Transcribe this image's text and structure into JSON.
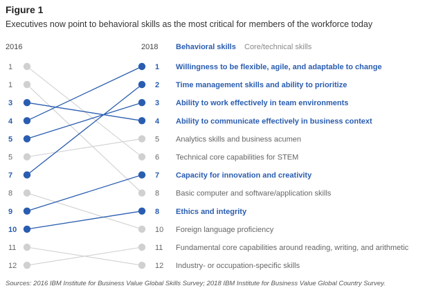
{
  "figure_label": "Figure 1",
  "subtitle": "Executives now point to behavioral skills as the most critical for members of the workforce today",
  "footer": "Sources: 2016 IBM Institute for Business Value Global Skills Survey; 2018 IBM Institute for Business Value Global Country Survey.",
  "colors": {
    "behavioral": "#2a5db0",
    "core": "#d0d0d0",
    "core_text": "#666666"
  },
  "chart_data": {
    "type": "slope",
    "left_year": "2016",
    "right_year": "2018",
    "legend": [
      "Behavioral skills",
      "Core/technical skills"
    ],
    "rows_2016": [
      {
        "rank": "1",
        "category": "core"
      },
      {
        "rank": "1",
        "category": "core"
      },
      {
        "rank": "3",
        "category": "behavioral"
      },
      {
        "rank": "4",
        "category": "behavioral"
      },
      {
        "rank": "5",
        "category": "behavioral"
      },
      {
        "rank": "5",
        "category": "core"
      },
      {
        "rank": "7",
        "category": "behavioral"
      },
      {
        "rank": "8",
        "category": "core"
      },
      {
        "rank": "9",
        "category": "behavioral"
      },
      {
        "rank": "10",
        "category": "behavioral"
      },
      {
        "rank": "11",
        "category": "core"
      },
      {
        "rank": "12",
        "category": "core"
      }
    ],
    "skills_2018": [
      {
        "rank": "1",
        "label": "Willingness to be flexible, agile, and adaptable to change",
        "category": "behavioral"
      },
      {
        "rank": "2",
        "label": "Time management skills and ability to prioritize",
        "category": "behavioral"
      },
      {
        "rank": "3",
        "label": "Ability to work effectively in team environments",
        "category": "behavioral"
      },
      {
        "rank": "4",
        "label": "Ability to communicate effectively in business context",
        "category": "behavioral"
      },
      {
        "rank": "5",
        "label": "Analytics skills and business acumen",
        "category": "core"
      },
      {
        "rank": "6",
        "label": "Technical core capabilities for STEM",
        "category": "core"
      },
      {
        "rank": "7",
        "label": "Capacity for innovation and creativity",
        "category": "behavioral"
      },
      {
        "rank": "8",
        "label": "Basic computer and software/application skills",
        "category": "core"
      },
      {
        "rank": "8",
        "label": "Ethics and integrity",
        "category": "behavioral"
      },
      {
        "rank": "10",
        "label": "Foreign language proficiency",
        "category": "core"
      },
      {
        "rank": "11",
        "label": "Fundamental core capabilities around reading, writing, and arithmetic",
        "category": "core"
      },
      {
        "rank": "12",
        "label": "Industry- or occupation-specific skills",
        "category": "core"
      }
    ],
    "links": [
      {
        "from": 0,
        "to": 5
      },
      {
        "from": 1,
        "to": 7
      },
      {
        "from": 2,
        "to": 3
      },
      {
        "from": 3,
        "to": 0
      },
      {
        "from": 4,
        "to": 2
      },
      {
        "from": 5,
        "to": 4
      },
      {
        "from": 6,
        "to": 1
      },
      {
        "from": 7,
        "to": 9
      },
      {
        "from": 8,
        "to": 6
      },
      {
        "from": 9,
        "to": 8
      },
      {
        "from": 10,
        "to": 11
      },
      {
        "from": 11,
        "to": 10
      }
    ]
  }
}
